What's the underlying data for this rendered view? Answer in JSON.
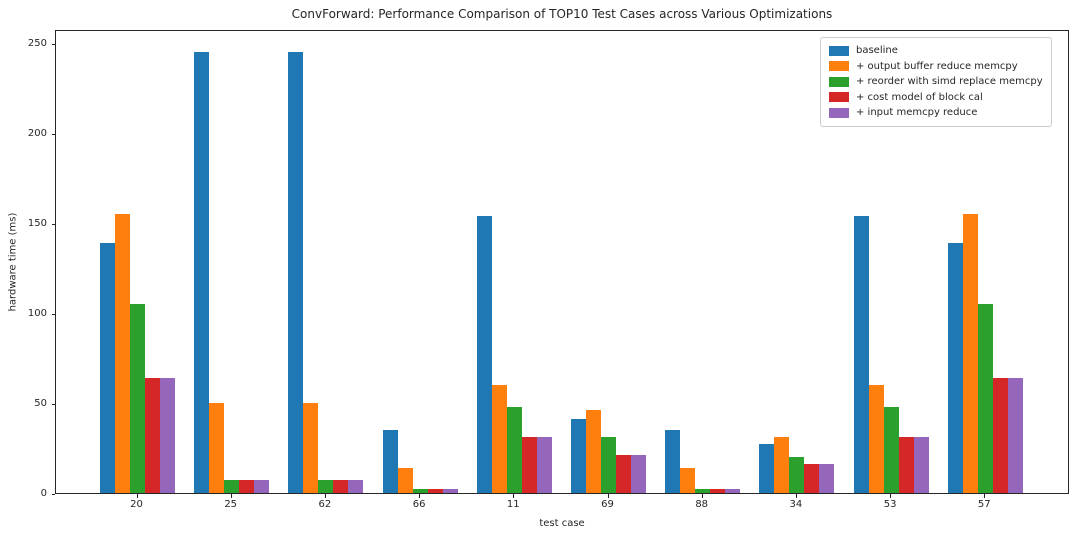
{
  "chart_data": {
    "type": "bar",
    "title": "ConvForward: Performance Comparison of TOP10 Test Cases across Various Optimizations",
    "xlabel": "test case",
    "ylabel": "hardware time (ms)",
    "categories": [
      "20",
      "25",
      "62",
      "66",
      "11",
      "69",
      "88",
      "34",
      "53",
      "57"
    ],
    "series": [
      {
        "name": "baseline",
        "color": "#1f77b4",
        "values": [
          139,
          245,
          245,
          35,
          154,
          41,
          35,
          27,
          154,
          139
        ]
      },
      {
        "name": "+ output buffer reduce memcpy",
        "color": "#ff7f0e",
        "values": [
          155,
          50,
          50,
          14,
          60,
          46,
          14,
          31,
          60,
          155
        ]
      },
      {
        "name": "+ reorder with simd replace memcpy",
        "color": "#2ca02c",
        "values": [
          105,
          7,
          7,
          2,
          48,
          31,
          2,
          20,
          48,
          105
        ]
      },
      {
        "name": "+ cost model of block cal",
        "color": "#d62728",
        "values": [
          64,
          7,
          7,
          2,
          31,
          21,
          2,
          16,
          31,
          64
        ]
      },
      {
        "name": "+ input memcpy reduce",
        "color": "#9467bd",
        "values": [
          64,
          7,
          7,
          2,
          31,
          21,
          2,
          16,
          31,
          64
        ]
      }
    ],
    "yticks": [
      0,
      50,
      100,
      150,
      200,
      250
    ],
    "ylim": [
      0,
      258
    ],
    "grid": false,
    "legend_position": "upper right"
  }
}
